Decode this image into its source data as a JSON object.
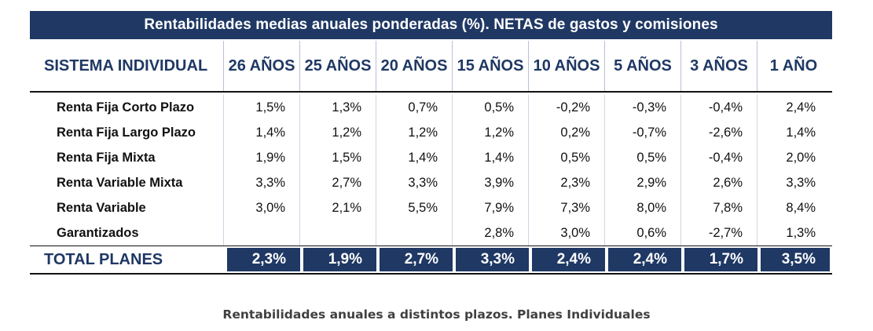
{
  "table": {
    "title": "Rentabilidades medias anuales ponderadas (%). NETAS de gastos y comisiones",
    "header": {
      "first": "SISTEMA INDIVIDUAL",
      "periods": [
        "26 AÑOS",
        "25 AÑOS",
        "20 AÑOS",
        "15 AÑOS",
        "10 AÑOS",
        "5 AÑOS",
        "3 AÑOS",
        "1 AÑO"
      ]
    },
    "rows": [
      {
        "name": "Renta Fija Corto Plazo",
        "values": [
          "1,5%",
          "1,3%",
          "0,7%",
          "0,5%",
          "-0,2%",
          "-0,3%",
          "-0,4%",
          "2,4%"
        ]
      },
      {
        "name": "Renta Fija Largo Plazo",
        "values": [
          "1,4%",
          "1,2%",
          "1,2%",
          "1,2%",
          "0,2%",
          "-0,7%",
          "-2,6%",
          "1,4%"
        ]
      },
      {
        "name": "Renta Fija Mixta",
        "values": [
          "1,9%",
          "1,5%",
          "1,4%",
          "1,4%",
          "0,5%",
          "0,5%",
          "-0,4%",
          "2,0%"
        ]
      },
      {
        "name": "Renta Variable Mixta",
        "values": [
          "3,3%",
          "2,7%",
          "3,3%",
          "3,9%",
          "2,3%",
          "2,9%",
          "2,6%",
          "3,3%"
        ]
      },
      {
        "name": "Renta Variable",
        "values": [
          "3,0%",
          "2,1%",
          "5,5%",
          "7,9%",
          "7,3%",
          "8,0%",
          "7,8%",
          "8,4%"
        ]
      },
      {
        "name": "Garantizados",
        "values": [
          "",
          "",
          "",
          "2,8%",
          "3,0%",
          "0,6%",
          "-2,7%",
          "1,3%"
        ]
      }
    ],
    "total": {
      "name": "TOTAL PLANES",
      "values": [
        "2,3%",
        "1,9%",
        "2,7%",
        "3,3%",
        "2,4%",
        "2,4%",
        "1,7%",
        "3,5%"
      ]
    }
  },
  "caption": "Rentabilidades anuales a distintos plazos. Planes Individuales"
}
